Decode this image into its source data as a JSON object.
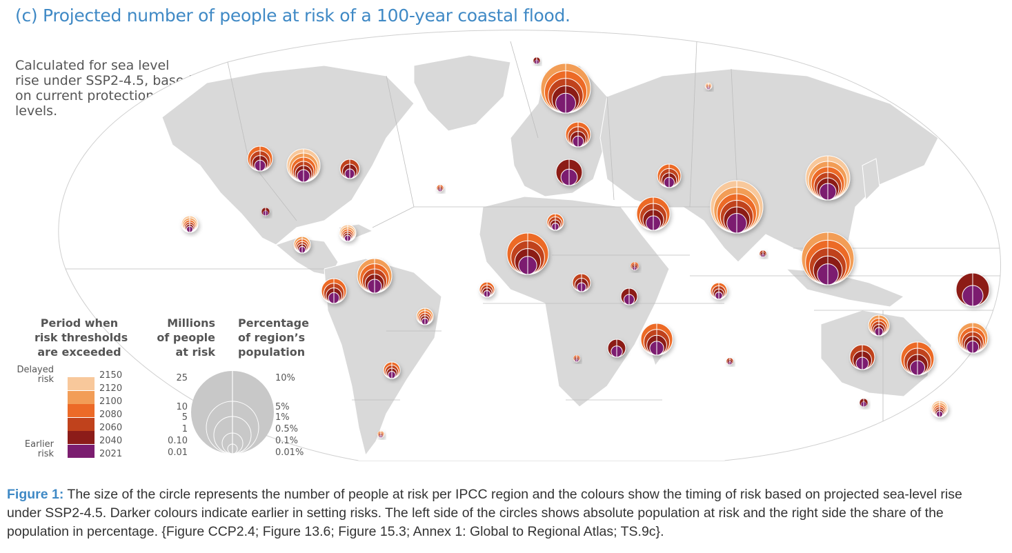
{
  "title": "(c) Projected number of people at risk of a 100-year coastal flood.",
  "subtitle_lines": [
    "Calculated for sea level",
    "rise under SSP2-4.5, based",
    "on current protection",
    "levels."
  ],
  "colors": {
    "c2150": "#f8c89b",
    "c2120": "#f29d57",
    "c2100": "#ec6a27",
    "c2080": "#c0421c",
    "c2040": "#8c1c19",
    "c2021": "#7b1d6f",
    "land": "#d9d9d9",
    "ocean": "#ffffff",
    "title": "#3f89c5"
  },
  "legend": {
    "period_heading": [
      "Period when",
      "risk thresholds",
      "are exceeded"
    ],
    "delayed": [
      "Delayed",
      "risk"
    ],
    "earlier": [
      "Earlier",
      "risk"
    ],
    "periods": [
      "2150",
      "2120",
      "2100",
      "2080",
      "2060",
      "2040",
      "2021"
    ],
    "size_heading": [
      "Millions",
      "of people",
      "at risk"
    ],
    "size_values": [
      "25",
      "10",
      "5",
      "1",
      "0.10",
      "0.01"
    ],
    "pct_heading": [
      "Percentage",
      "of region’s",
      "population"
    ],
    "pct_values": [
      "10%",
      "5%",
      "1%",
      "0.5%",
      "0.1%",
      "0.01%"
    ]
  },
  "caption": {
    "label": "Figure 1:",
    "text": " The size of the circle represents the number of people at risk per IPCC region and the colours show the timing of risk based on projected sea-level rise under SSP2-4.5. Darker colours indicate earlier in setting risks. The left side of the circles shows absolute population at risk and the right side the share of the population in percentage. {Figure CCP2.4; Figure 13.6; Figure 15.3; Annex 1: Global to Regional Atlas; TS.9c}."
  }
}
